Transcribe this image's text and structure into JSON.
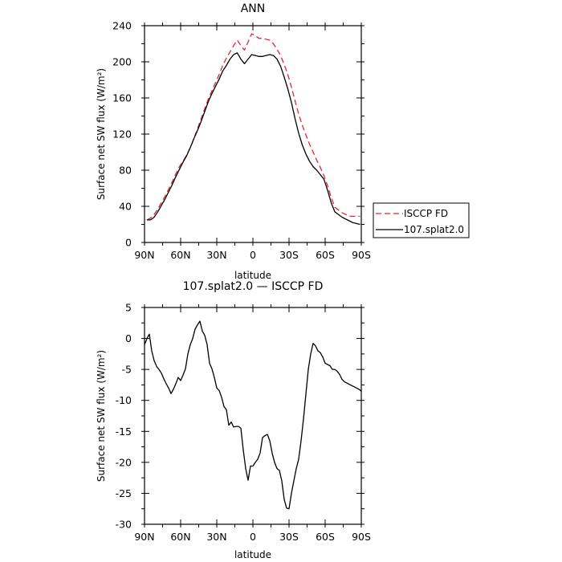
{
  "chart_data": [
    {
      "type": "line",
      "title": "ANN",
      "xlabel": "latitude",
      "ylabel": "Surface net SW flux (W/m²)",
      "x_tick_labels": [
        "90N",
        "60N",
        "30N",
        "0",
        "30S",
        "60S",
        "90S"
      ],
      "x_tick_values": [
        90,
        60,
        30,
        0,
        -30,
        -60,
        -90
      ],
      "xlim": [
        90,
        -90
      ],
      "ylim": [
        0,
        240
      ],
      "y_tick_values": [
        0,
        40,
        80,
        120,
        160,
        200,
        240
      ],
      "grid": false,
      "legend_placement": "right, outside plot",
      "legend": [
        "ISCCP FD",
        "107.splat2.0"
      ],
      "series": [
        {
          "name": "ISCCP FD",
          "color": "#e8242a",
          "style": "dashed",
          "x": [
            88,
            85,
            82,
            79,
            76,
            73,
            70,
            67,
            64,
            61,
            58,
            55,
            52,
            49,
            46,
            43,
            40,
            37,
            34,
            31,
            28,
            25,
            22,
            19,
            16,
            13,
            10,
            7,
            4,
            1,
            -2,
            -5,
            -8,
            -11,
            -14,
            -17,
            -20,
            -23,
            -26,
            -29,
            -32,
            -35,
            -38,
            -41,
            -44,
            -47,
            -50,
            -53,
            -56,
            -59,
            -62,
            -65,
            -68,
            -71,
            -74,
            -77,
            -80,
            -83,
            -86,
            -89
          ],
          "y": [
            25,
            27,
            31,
            37,
            44,
            51,
            59,
            67,
            76,
            84,
            90,
            97,
            105,
            115,
            126,
            137,
            148,
            159,
            168,
            177,
            186,
            196,
            204,
            211,
            218,
            224,
            218,
            213,
            222,
            231,
            229,
            226,
            226,
            225,
            224,
            220,
            214,
            207,
            197,
            186,
            172,
            157,
            142,
            130,
            119,
            109,
            100,
            91,
            83,
            74,
            63,
            50,
            39,
            36,
            33,
            31,
            29,
            29,
            29,
            29
          ]
        },
        {
          "name": "107.splat2.0",
          "color": "#000000",
          "style": "solid",
          "x": [
            88,
            85,
            82,
            79,
            76,
            73,
            70,
            67,
            64,
            61,
            58,
            55,
            52,
            49,
            46,
            43,
            40,
            37,
            34,
            31,
            28,
            25,
            22,
            19,
            16,
            13,
            10,
            7,
            4,
            1,
            -2,
            -5,
            -8,
            -11,
            -14,
            -17,
            -20,
            -23,
            -26,
            -29,
            -32,
            -35,
            -38,
            -41,
            -44,
            -47,
            -50,
            -53,
            -56,
            -59,
            -62,
            -65,
            -68,
            -71,
            -74,
            -77,
            -80,
            -83,
            -86,
            -89
          ],
          "y": [
            25,
            25,
            28,
            34,
            41,
            48,
            56,
            64,
            73,
            81,
            89,
            96,
            105,
            115,
            124,
            134,
            145,
            156,
            165,
            173,
            181,
            190,
            196,
            203,
            208,
            210,
            203,
            198,
            203,
            208,
            207,
            206,
            206,
            207,
            208,
            207,
            203,
            195,
            183,
            170,
            155,
            137,
            121,
            108,
            98,
            90,
            84,
            80,
            75,
            70,
            58,
            44,
            34,
            31,
            28,
            26,
            24,
            22,
            21,
            20
          ]
        }
      ]
    },
    {
      "type": "line",
      "title": "107.splat2.0 — ISCCP FD",
      "xlabel": "latitude",
      "ylabel": "Surface net SW flux (W/m²)",
      "x_tick_labels": [
        "90N",
        "60N",
        "30N",
        "0",
        "30S",
        "60S",
        "90S"
      ],
      "x_tick_values": [
        90,
        60,
        30,
        0,
        -30,
        -60,
        -90
      ],
      "xlim": [
        90,
        -90
      ],
      "ylim": [
        -30,
        5
      ],
      "y_tick_values": [
        -30,
        -25,
        -20,
        -15,
        -10,
        -5,
        0,
        5
      ],
      "grid": false,
      "series": [
        {
          "color": "#000000",
          "style": "solid",
          "x": [
            90,
            88,
            86,
            84,
            82,
            80,
            78,
            76,
            74,
            72,
            70,
            68,
            66,
            64,
            62,
            60,
            58,
            56,
            54,
            52,
            50,
            48,
            46,
            44,
            42,
            40,
            38,
            36,
            34,
            32,
            30,
            28,
            26,
            24,
            22,
            20,
            18,
            16,
            14,
            12,
            10,
            8,
            6,
            4,
            2,
            0,
            -2,
            -4,
            -6,
            -8,
            -10,
            -12,
            -14,
            -16,
            -18,
            -20,
            -22,
            -24,
            -26,
            -28,
            -30,
            -32,
            -34,
            -36,
            -38,
            -40,
            -42,
            -44,
            -46,
            -48,
            -50,
            -52,
            -54,
            -56,
            -58,
            -60,
            -62,
            -64,
            -66,
            -68,
            -70,
            -72,
            -74,
            -76,
            -78,
            -80,
            -82,
            -84,
            -86,
            -88,
            -90
          ],
          "y": [
            -1,
            0,
            0.7,
            -2,
            -3.6,
            -4.5,
            -5,
            -5.6,
            -6.5,
            -7.3,
            -8,
            -8.9,
            -8.2,
            -7.3,
            -6.3,
            -6.8,
            -5.9,
            -4.9,
            -2.5,
            -1,
            0,
            1.5,
            2.2,
            2.8,
            1.2,
            0.5,
            -1,
            -4,
            -4.9,
            -6.3,
            -8,
            -8.4,
            -9.5,
            -11,
            -11.5,
            -14,
            -13.5,
            -14.3,
            -14.2,
            -14.2,
            -14.5,
            -18,
            -21,
            -22.9,
            -20.6,
            -20.6,
            -20,
            -19.5,
            -18.5,
            -16,
            -15.7,
            -15.5,
            -16.5,
            -18.5,
            -20,
            -21,
            -21.3,
            -23,
            -26,
            -27.4,
            -27.5,
            -25,
            -23,
            -21,
            -19.5,
            -16.5,
            -13,
            -9,
            -5,
            -2.5,
            -0.8,
            -1.2,
            -2,
            -2.3,
            -3,
            -4,
            -4.2,
            -4.4,
            -5,
            -5,
            -5.3,
            -5.8,
            -6.6,
            -7,
            -7.2,
            -7.4,
            -7.6,
            -7.8,
            -8,
            -8.2,
            -8.5
          ]
        }
      ]
    }
  ]
}
